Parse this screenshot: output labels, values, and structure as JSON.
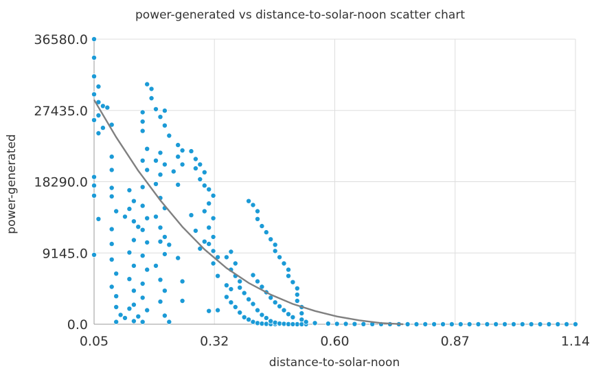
{
  "chart_data": {
    "type": "scatter",
    "title": "power-generated vs distance-to-solar-noon scatter chart",
    "xlabel": "distance-to-solar-noon",
    "ylabel": "power-generated",
    "xlim": [
      0.05,
      1.14
    ],
    "ylim": [
      0,
      36580
    ],
    "x_ticks": [
      "0.05",
      "0.32",
      "0.60",
      "0.87",
      "1.14"
    ],
    "y_ticks": [
      "0.0",
      "9145.0",
      "18290.0",
      "27435.0",
      "36580.0"
    ],
    "grid": true,
    "legend": "none",
    "colors": {
      "points": "#1b9ad6",
      "trend": "#808080",
      "grid": "#dddddd",
      "axis": "#999999"
    },
    "series": [
      {
        "values": [
          [
            0.05,
            36580
          ],
          [
            0.05,
            34200
          ],
          [
            0.05,
            31800
          ],
          [
            0.06,
            30500
          ],
          [
            0.05,
            29500
          ],
          [
            0.06,
            28500
          ],
          [
            0.07,
            28000
          ],
          [
            0.08,
            27800
          ],
          [
            0.06,
            26800
          ],
          [
            0.05,
            26200
          ],
          [
            0.09,
            25600
          ],
          [
            0.07,
            25200
          ],
          [
            0.06,
            24500
          ],
          [
            0.05,
            18900
          ],
          [
            0.05,
            17800
          ],
          [
            0.05,
            16500
          ],
          [
            0.06,
            13500
          ],
          [
            0.05,
            8900
          ],
          [
            0.09,
            21500
          ],
          [
            0.09,
            19800
          ],
          [
            0.09,
            17500
          ],
          [
            0.09,
            16400
          ],
          [
            0.1,
            14500
          ],
          [
            0.09,
            12200
          ],
          [
            0.09,
            10300
          ],
          [
            0.09,
            8300
          ],
          [
            0.1,
            6500
          ],
          [
            0.09,
            4800
          ],
          [
            0.1,
            3600
          ],
          [
            0.1,
            2200
          ],
          [
            0.11,
            1200
          ],
          [
            0.1,
            300
          ],
          [
            0.12,
            800
          ],
          [
            0.13,
            2000
          ],
          [
            0.12,
            13800
          ],
          [
            0.13,
            14800
          ],
          [
            0.14,
            15800
          ],
          [
            0.13,
            17200
          ],
          [
            0.14,
            13200
          ],
          [
            0.15,
            12500
          ],
          [
            0.14,
            10800
          ],
          [
            0.13,
            9200
          ],
          [
            0.14,
            7500
          ],
          [
            0.13,
            5800
          ],
          [
            0.14,
            4300
          ],
          [
            0.14,
            2500
          ],
          [
            0.15,
            1000
          ],
          [
            0.14,
            400
          ],
          [
            0.16,
            27200
          ],
          [
            0.16,
            26000
          ],
          [
            0.16,
            24800
          ],
          [
            0.17,
            22500
          ],
          [
            0.16,
            21000
          ],
          [
            0.17,
            19800
          ],
          [
            0.16,
            17600
          ],
          [
            0.16,
            15200
          ],
          [
            0.17,
            13600
          ],
          [
            0.16,
            12100
          ],
          [
            0.17,
            10500
          ],
          [
            0.16,
            8800
          ],
          [
            0.17,
            7000
          ],
          [
            0.16,
            5200
          ],
          [
            0.16,
            3400
          ],
          [
            0.17,
            1800
          ],
          [
            0.16,
            300
          ],
          [
            0.17,
            30800
          ],
          [
            0.18,
            30200
          ],
          [
            0.18,
            29000
          ],
          [
            0.19,
            27600
          ],
          [
            0.2,
            26600
          ],
          [
            0.21,
            27400
          ],
          [
            0.21,
            25500
          ],
          [
            0.22,
            24200
          ],
          [
            0.2,
            22000
          ],
          [
            0.19,
            21000
          ],
          [
            0.21,
            20500
          ],
          [
            0.2,
            19200
          ],
          [
            0.19,
            18000
          ],
          [
            0.2,
            16200
          ],
          [
            0.21,
            14900
          ],
          [
            0.19,
            13800
          ],
          [
            0.2,
            12400
          ],
          [
            0.2,
            10600
          ],
          [
            0.21,
            9000
          ],
          [
            0.19,
            7500
          ],
          [
            0.2,
            5700
          ],
          [
            0.21,
            4300
          ],
          [
            0.2,
            2900
          ],
          [
            0.21,
            1100
          ],
          [
            0.22,
            300
          ],
          [
            0.21,
            11200
          ],
          [
            0.22,
            10200
          ],
          [
            0.24,
            23000
          ],
          [
            0.25,
            22300
          ],
          [
            0.24,
            21500
          ],
          [
            0.25,
            20500
          ],
          [
            0.23,
            19600
          ],
          [
            0.24,
            17900
          ],
          [
            0.24,
            8500
          ],
          [
            0.25,
            5500
          ],
          [
            0.25,
            3000
          ],
          [
            0.27,
            22200
          ],
          [
            0.28,
            21200
          ],
          [
            0.29,
            20500
          ],
          [
            0.28,
            20000
          ],
          [
            0.3,
            19500
          ],
          [
            0.29,
            18600
          ],
          [
            0.3,
            17800
          ],
          [
            0.31,
            17300
          ],
          [
            0.32,
            16500
          ],
          [
            0.31,
            15500
          ],
          [
            0.3,
            14500
          ],
          [
            0.32,
            13600
          ],
          [
            0.31,
            12400
          ],
          [
            0.32,
            11200
          ],
          [
            0.31,
            10300
          ],
          [
            0.32,
            9400
          ],
          [
            0.33,
            8600
          ],
          [
            0.32,
            7800
          ],
          [
            0.33,
            6200
          ],
          [
            0.3,
            10600
          ],
          [
            0.29,
            9700
          ],
          [
            0.28,
            12000
          ],
          [
            0.27,
            14000
          ],
          [
            0.33,
            1800
          ],
          [
            0.31,
            1700
          ],
          [
            0.35,
            5000
          ],
          [
            0.36,
            4500
          ],
          [
            0.35,
            3500
          ],
          [
            0.36,
            2800
          ],
          [
            0.37,
            2200
          ],
          [
            0.38,
            1500
          ],
          [
            0.39,
            900
          ],
          [
            0.4,
            600
          ],
          [
            0.41,
            300
          ],
          [
            0.42,
            150
          ],
          [
            0.43,
            80
          ],
          [
            0.44,
            40
          ],
          [
            0.45,
            20
          ],
          [
            0.46,
            10
          ],
          [
            0.47,
            5
          ],
          [
            0.48,
            3
          ],
          [
            0.49,
            0
          ],
          [
            0.5,
            0
          ],
          [
            0.51,
            0
          ],
          [
            0.52,
            0
          ],
          [
            0.53,
            0
          ],
          [
            0.35,
            8600
          ],
          [
            0.36,
            9300
          ],
          [
            0.37,
            7800
          ],
          [
            0.36,
            7000
          ],
          [
            0.37,
            6200
          ],
          [
            0.38,
            5500
          ],
          [
            0.38,
            4700
          ],
          [
            0.39,
            4000
          ],
          [
            0.4,
            3200
          ],
          [
            0.41,
            2600
          ],
          [
            0.42,
            1800
          ],
          [
            0.43,
            1200
          ],
          [
            0.44,
            800
          ],
          [
            0.45,
            400
          ],
          [
            0.46,
            200
          ],
          [
            0.47,
            100
          ],
          [
            0.48,
            50
          ],
          [
            0.49,
            20
          ],
          [
            0.5,
            10
          ],
          [
            0.4,
            15800
          ],
          [
            0.41,
            15300
          ],
          [
            0.42,
            14500
          ],
          [
            0.42,
            13500
          ],
          [
            0.43,
            12600
          ],
          [
            0.44,
            11800
          ],
          [
            0.45,
            10900
          ],
          [
            0.46,
            10200
          ],
          [
            0.46,
            9400
          ],
          [
            0.47,
            8600
          ],
          [
            0.48,
            7800
          ],
          [
            0.49,
            7000
          ],
          [
            0.49,
            6200
          ],
          [
            0.5,
            5400
          ],
          [
            0.51,
            4600
          ],
          [
            0.51,
            3800
          ],
          [
            0.51,
            3000
          ],
          [
            0.52,
            2200
          ],
          [
            0.52,
            1400
          ],
          [
            0.52,
            600
          ],
          [
            0.41,
            6300
          ],
          [
            0.42,
            5500
          ],
          [
            0.43,
            4800
          ],
          [
            0.44,
            4100
          ],
          [
            0.45,
            3400
          ],
          [
            0.46,
            2800
          ],
          [
            0.47,
            2300
          ],
          [
            0.48,
            1800
          ],
          [
            0.49,
            1300
          ],
          [
            0.5,
            900
          ],
          [
            0.53,
            300
          ],
          [
            0.55,
            150
          ],
          [
            0.58,
            80
          ],
          [
            0.62,
            40
          ],
          [
            0.66,
            20
          ],
          [
            0.7,
            10
          ],
          [
            0.74,
            0
          ],
          [
            0.78,
            0
          ],
          [
            0.82,
            0
          ],
          [
            0.86,
            0
          ],
          [
            0.9,
            0
          ],
          [
            0.94,
            0
          ],
          [
            0.98,
            0
          ],
          [
            1.02,
            0
          ],
          [
            1.06,
            0
          ],
          [
            1.1,
            0
          ],
          [
            1.14,
            0
          ],
          [
            0.88,
            0
          ],
          [
            0.92,
            0
          ],
          [
            0.96,
            0
          ],
          [
            1.0,
            0
          ],
          [
            1.04,
            0
          ],
          [
            1.08,
            0
          ],
          [
            1.12,
            0
          ],
          [
            0.6,
            50
          ],
          [
            0.64,
            30
          ],
          [
            0.68,
            15
          ],
          [
            0.72,
            5
          ],
          [
            0.76,
            0
          ],
          [
            0.8,
            0
          ],
          [
            0.84,
            0
          ]
        ]
      }
    ],
    "trend": {
      "type": "exponential",
      "x": [
        0.05,
        0.1,
        0.15,
        0.2,
        0.25,
        0.3,
        0.35,
        0.4,
        0.45,
        0.5,
        0.55,
        0.6,
        0.65,
        0.7,
        0.75
      ],
      "y": [
        28800,
        24000,
        19700,
        15900,
        12500,
        9600,
        7200,
        5300,
        3800,
        2600,
        1700,
        1000,
        500,
        150,
        0
      ]
    }
  }
}
